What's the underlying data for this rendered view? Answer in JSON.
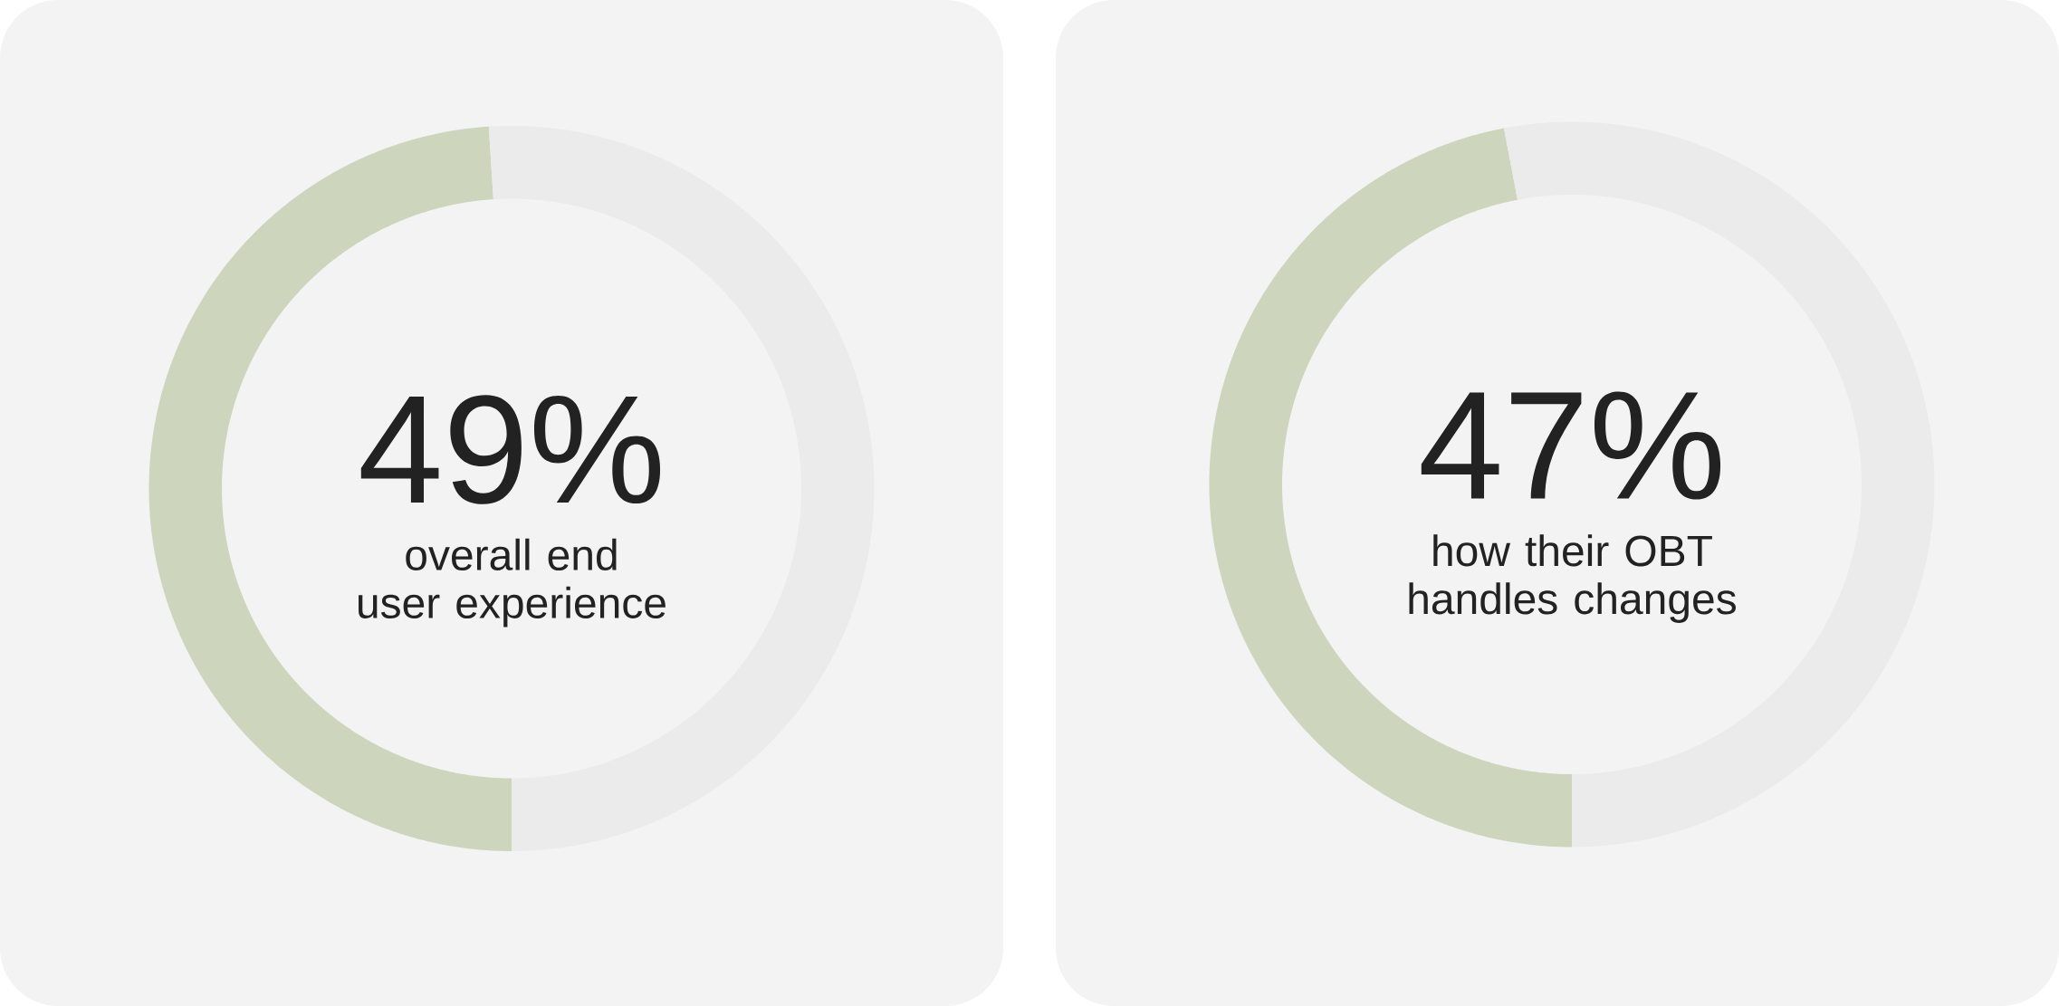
{
  "chart_data": [
    {
      "type": "donut",
      "categories": [
        "overall end user experience",
        null
      ],
      "values": [
        49,
        51
      ],
      "colors": [
        "#cdd5bc",
        "#ebebeb"
      ],
      "value_labels": [
        "49%",
        null
      ]
    },
    {
      "type": "donut",
      "categories": [
        "how their OBT handles changes",
        null
      ],
      "values": [
        47,
        53
      ],
      "colors": [
        "#cdd5bc",
        "#ebebeb"
      ],
      "value_labels": [
        "47%",
        null
      ]
    }
  ]
}
